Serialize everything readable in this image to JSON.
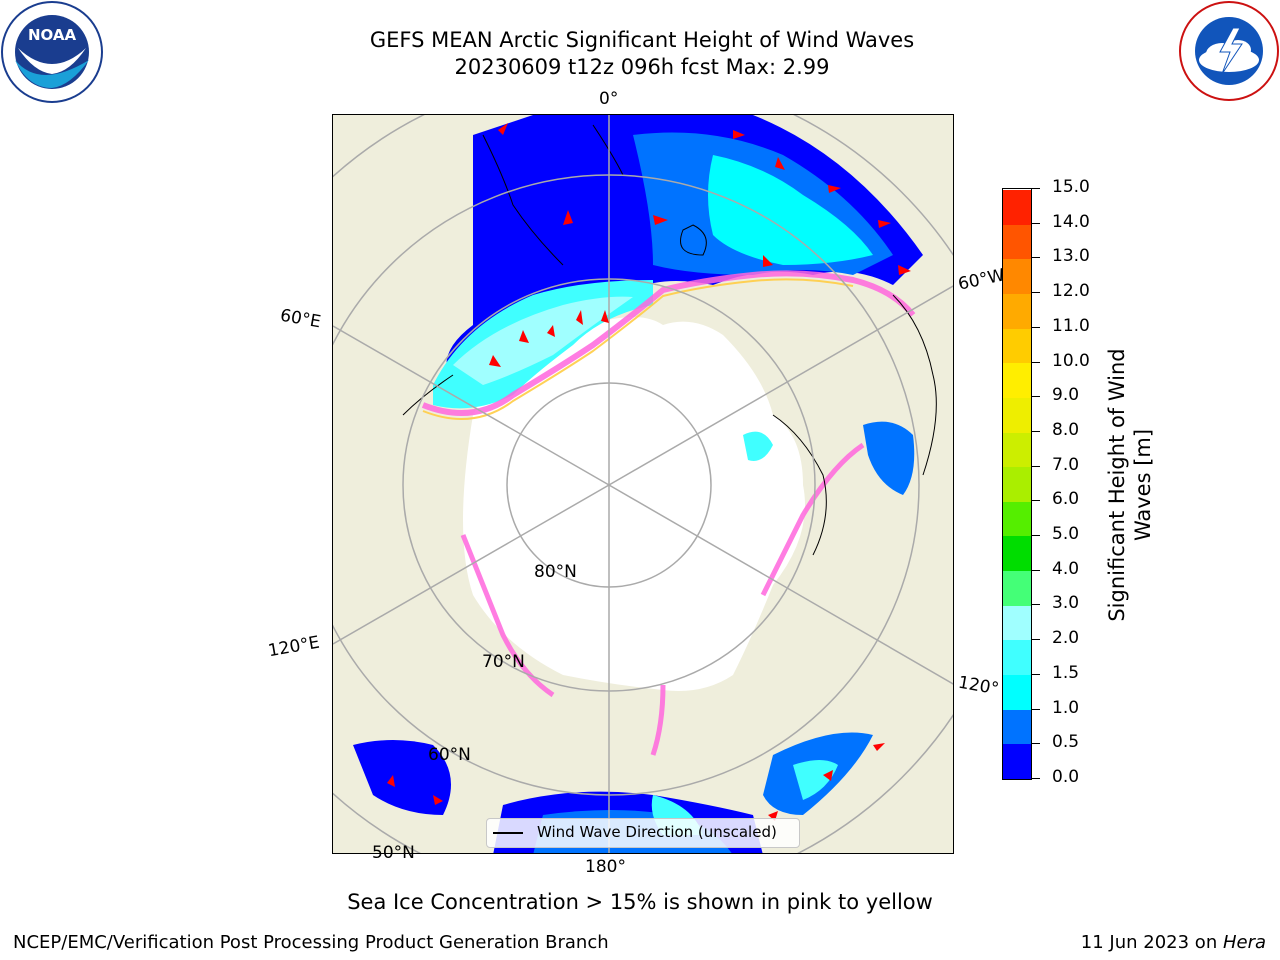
{
  "header": {
    "title_line1": "GEFS MEAN Arctic Significant Height of Wind Waves",
    "title_line2": "20230609 t12z 096h fcst   Max: 2.99"
  },
  "logos": {
    "noaa": "NOAA",
    "noaa_ring": "NATIONAL OCEANIC AND ATMOSPHERIC ADMINISTRATION · U.S. DEPARTMENT OF COMMERCE",
    "nws_ring": "NATIONAL WEATHER SERVICE"
  },
  "map": {
    "longitude_labels": {
      "lon_0": "0°",
      "lon_60w": "60°W",
      "lon_60e": "60°E",
      "lon_120e": "120°E",
      "lon_120w": "120°",
      "lon_180": "180°"
    },
    "latitude_labels": {
      "lat_80": "80°N",
      "lat_70": "70°N",
      "lat_60": "60°N",
      "lat_50": "50°N"
    },
    "legend_label": "Wind Wave Direction (unscaled)",
    "colors": {
      "land": "#efeedc",
      "ice_free_background": "#ffffff",
      "grid": "#aaaaaa",
      "arrow": "#ff0000"
    }
  },
  "colorbar": {
    "label_line1": "Significant Height of Wind",
    "label_line2": "Waves [m]",
    "ticks": [
      "0.0",
      "0.5",
      "1.0",
      "1.5",
      "2.0",
      "3.0",
      "4.0",
      "5.0",
      "6.0",
      "7.0",
      "8.0",
      "9.0",
      "10.0",
      "11.0",
      "12.0",
      "13.0",
      "14.0",
      "15.0"
    ],
    "colors": [
      "#0000ff",
      "#0073ff",
      "#00ffff",
      "#40ffff",
      "#a0ffff",
      "#44ff77",
      "#00dd00",
      "#55ee00",
      "#aaee00",
      "#ccee00",
      "#eeee00",
      "#ffee00",
      "#ffcc00",
      "#ffaa00",
      "#ff8800",
      "#ff5500",
      "#ff2200"
    ]
  },
  "footer": {
    "note": "Sea Ice Concentration > 15% is shown in pink to yellow",
    "left": "NCEP/EMC/Verification Post Processing Product Generation Branch",
    "right_date": "11 Jun 2023 on ",
    "right_host": "Hera"
  }
}
